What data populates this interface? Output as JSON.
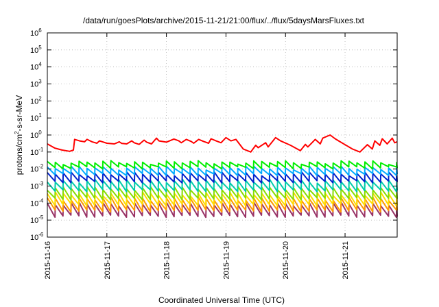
{
  "chart_data": {
    "type": "line",
    "title": "/data/run/goesPlots/archive/2015-11-21/21:00/flux/../flux/5daysMarsFluxes.txt",
    "xlabel": "Coordinated Universal Time (UTC)",
    "ylabel_parts": {
      "base": "protons/cm",
      "sup": "2",
      "rest": "-s-sr-MeV"
    },
    "y_scale": "log",
    "ylim": [
      1e-06,
      1000000.0
    ],
    "y_ticks": [
      {
        "value": 1e-06,
        "base": "10",
        "exp": "-6"
      },
      {
        "value": 1e-05,
        "base": "10",
        "exp": "-5"
      },
      {
        "value": 0.0001,
        "base": "10",
        "exp": "-4"
      },
      {
        "value": 0.001,
        "base": "10",
        "exp": "-3"
      },
      {
        "value": 0.01,
        "base": "10",
        "exp": "-2"
      },
      {
        "value": 0.1,
        "base": "10",
        "exp": "-1"
      },
      {
        "value": 1,
        "base": "10",
        "exp": "0"
      },
      {
        "value": 10,
        "base": "10",
        "exp": "1"
      },
      {
        "value": 100,
        "base": "10",
        "exp": "2"
      },
      {
        "value": 1000,
        "base": "10",
        "exp": "3"
      },
      {
        "value": 10000,
        "base": "10",
        "exp": "4"
      },
      {
        "value": 100000,
        "base": "10",
        "exp": "5"
      },
      {
        "value": 1000000,
        "base": "10",
        "exp": "6"
      }
    ],
    "xlim": [
      "2015-11-16T00:00",
      "2015-11-21T21:00"
    ],
    "x_ticks": [
      "2015-11-16",
      "2015-11-17",
      "2015-11-18",
      "2015-11-19",
      "2015-11-20",
      "2015-11-21"
    ],
    "grid": true,
    "legend": "none",
    "series": [
      {
        "color": "#ff0000",
        "x": [
          "2015-11-16T00:00",
          "2015-11-16T03:00",
          "2015-11-16T06:00",
          "2015-11-16T09:00",
          "2015-11-16T10:30",
          "2015-11-16T11:00",
          "2015-11-16T13:00",
          "2015-11-16T15:00",
          "2015-11-16T16:00",
          "2015-11-16T18:00",
          "2015-11-16T20:00",
          "2015-11-16T21:00",
          "2015-11-17T00:00",
          "2015-11-17T03:00",
          "2015-11-17T05:00",
          "2015-11-17T06:00",
          "2015-11-17T08:00",
          "2015-11-17T10:00",
          "2015-11-17T11:00",
          "2015-11-17T13:00",
          "2015-11-17T15:00",
          "2015-11-17T16:00",
          "2015-11-17T18:00",
          "2015-11-17T20:00",
          "2015-11-17T21:00",
          "2015-11-18T00:00",
          "2015-11-18T03:00",
          "2015-11-18T05:00",
          "2015-11-18T06:00",
          "2015-11-18T08:00",
          "2015-11-18T10:00",
          "2015-11-18T11:00",
          "2015-11-18T13:00",
          "2015-11-18T15:00",
          "2015-11-18T17:00",
          "2015-11-18T18:00",
          "2015-11-18T20:00",
          "2015-11-18T22:00",
          "2015-11-19T00:00",
          "2015-11-19T02:00",
          "2015-11-19T04:00",
          "2015-11-19T07:00",
          "2015-11-19T10:00",
          "2015-11-19T12:00",
          "2015-11-19T13:00",
          "2015-11-19T16:00",
          "2015-11-19T17:00",
          "2015-11-19T20:00",
          "2015-11-19T22:00",
          "2015-11-20T02:00",
          "2015-11-20T06:00",
          "2015-11-20T08:00",
          "2015-11-20T09:00",
          "2015-11-20T12:00",
          "2015-11-20T14:00",
          "2015-11-20T15:00",
          "2015-11-20T18:00",
          "2015-11-20T20:00",
          "2015-11-20T22:00",
          "2015-11-21T03:00",
          "2015-11-21T06:00",
          "2015-11-21T09:00",
          "2015-11-21T11:00",
          "2015-11-21T12:00",
          "2015-11-21T14:00",
          "2015-11-21T15:00",
          "2015-11-21T17:00",
          "2015-11-21T19:00",
          "2015-11-21T20:00",
          "2015-11-21T21:00"
        ],
        "y": [
          0.3,
          0.17,
          0.13,
          0.11,
          0.13,
          0.55,
          0.45,
          0.4,
          0.55,
          0.4,
          0.33,
          0.45,
          0.33,
          0.3,
          0.4,
          0.32,
          0.3,
          0.45,
          0.35,
          0.28,
          0.5,
          0.38,
          0.3,
          0.65,
          0.45,
          0.38,
          0.58,
          0.45,
          0.35,
          0.55,
          0.42,
          0.33,
          0.55,
          0.42,
          0.33,
          0.6,
          0.45,
          0.35,
          0.7,
          0.45,
          0.55,
          0.15,
          0.1,
          0.25,
          0.18,
          0.35,
          0.2,
          0.7,
          0.45,
          0.25,
          0.12,
          0.28,
          0.2,
          0.55,
          0.3,
          0.65,
          1.0,
          0.6,
          0.4,
          0.15,
          0.1,
          0.27,
          0.15,
          0.45,
          0.25,
          0.6,
          0.3,
          0.65,
          0.35,
          0.4
        ]
      },
      {
        "color": "#00ee00",
        "x": [
          "2015-11-16T00:00",
          "2015-11-21T21:00"
        ],
        "y": [
          0.013,
          0.017
        ],
        "peak": 0.025,
        "trough": 0.012
      },
      {
        "color": "#00aaff",
        "peak": 0.012,
        "trough": 0.0048
      },
      {
        "color": "#0022cc",
        "peak": 0.0055,
        "trough": 0.0018
      },
      {
        "color": "#00ccaa",
        "peak": 0.002,
        "trough": 0.00055
      },
      {
        "color": "#88dd00",
        "peak": 0.00075,
        "trough": 0.00018
      },
      {
        "color": "#ffdd00",
        "peak": 0.00035,
        "trough": 8e-05
      },
      {
        "color": "#ff9900",
        "peak": 0.00018,
        "trough": 3.5e-05
      },
      {
        "color": "#993366",
        "peak": 9e-05,
        "trough": 1.7e-05
      }
    ],
    "sawtooth_period_hours": 3.2
  }
}
